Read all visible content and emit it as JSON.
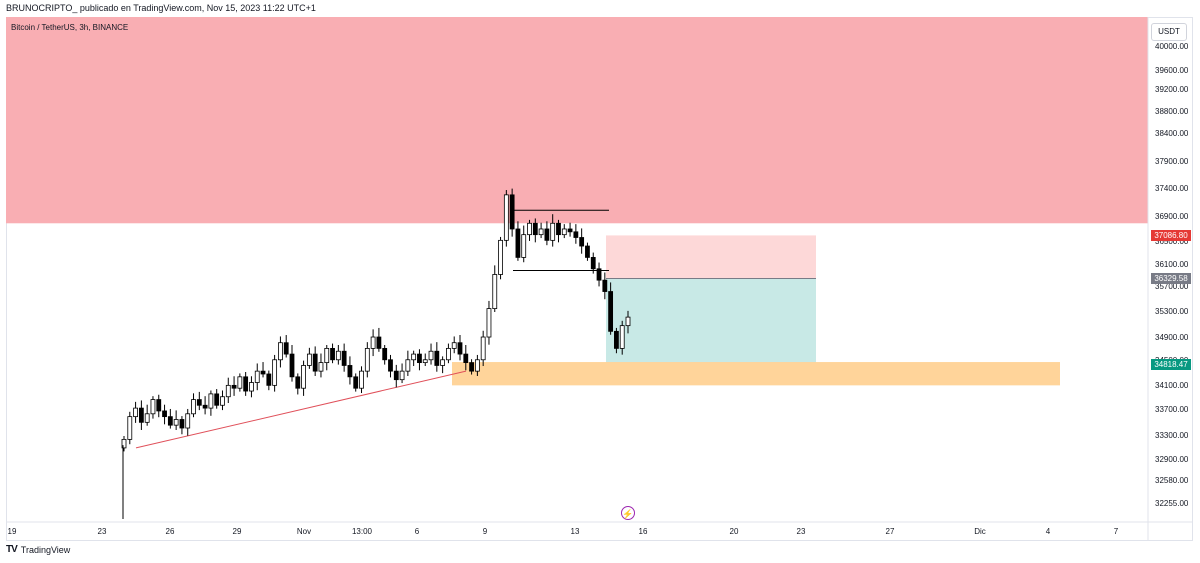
{
  "header": {
    "text": "BRUNOCRIPTO_ publicado en TradingView.com, Nov 15, 2023 11:22 UTC+1"
  },
  "symbol": {
    "text": "Bitcoin / TetherUS, 3h, BINANCE"
  },
  "currency": "USDT",
  "y_axis": [
    "40000.00",
    "39600.00",
    "39200.00",
    "38800.00",
    "38400.00",
    "37900.00",
    "37400.00",
    "36900.00",
    "36500.00",
    "36100.00",
    "35700.00",
    "35300.00",
    "34900.00",
    "34500.00",
    "34100.00",
    "33700.00",
    "33300.00",
    "32900.00",
    "32580.00",
    "32255.00"
  ],
  "x_axis": [
    "19",
    "23",
    "26",
    "29",
    "Nov",
    "13:00",
    "6",
    "9",
    "13",
    "16",
    "20",
    "23",
    "27",
    "Dic",
    "4",
    "7"
  ],
  "price_tags": {
    "stop": {
      "text": "37086.80",
      "color": "#e53935"
    },
    "current": {
      "text": "36329.58",
      "color": "#787b86"
    },
    "target": {
      "text": "34818.47",
      "color": "#089981"
    }
  },
  "footer": {
    "logo": "TV",
    "brand": "TradingView"
  },
  "flash_icon": "lightning-icon",
  "colors": {
    "supply_zone": "#f9aeb3",
    "demand_zone": "#ffd49a",
    "risk_zone": "#fdd8d8",
    "reward_zone": "#c8e9e6",
    "candle": "#000000",
    "trendline": "#e0505a"
  },
  "chart_data": {
    "type": "candlestick",
    "symbol": "BTCUSDT",
    "timeframe": "3h",
    "ylim": [
      32100,
      40400
    ],
    "supply_zone": [
      37300,
      40400
    ],
    "demand_zone": [
      34450,
      34860
    ],
    "position": {
      "entry": 36329.58,
      "stop": 37086.8,
      "target": 34818.47
    },
    "resistance_line": 37530,
    "support_line": 36470,
    "trendline": [
      [
        33350,
        34700
      ]
    ],
    "close_path": [
      33500,
      33900,
      34050,
      33800,
      33950,
      34200,
      34000,
      33900,
      33750,
      33850,
      33700,
      33950,
      34200,
      34100,
      34050,
      34300,
      34100,
      34250,
      34450,
      34400,
      34600,
      34350,
      34500,
      34700,
      34650,
      34450,
      34900,
      35200,
      35000,
      34600,
      34400,
      34800,
      35000,
      34700,
      34850,
      35100,
      34900,
      35050,
      34800,
      34600,
      34400,
      34700,
      35100,
      35300,
      35100,
      34900,
      34700,
      34550,
      34700,
      34900,
      35000,
      34850,
      34900,
      35050,
      34800,
      34900,
      35100,
      35200,
      35000,
      34850,
      34700,
      34900,
      35300,
      35800,
      36400,
      37000,
      37800,
      37200,
      36700,
      37100,
      37300,
      37100,
      37200,
      37000,
      37300,
      37100,
      37200,
      37150,
      37050,
      36900,
      36700,
      36500,
      36300,
      36100,
      35400,
      35100,
      35500,
      35650
    ]
  }
}
